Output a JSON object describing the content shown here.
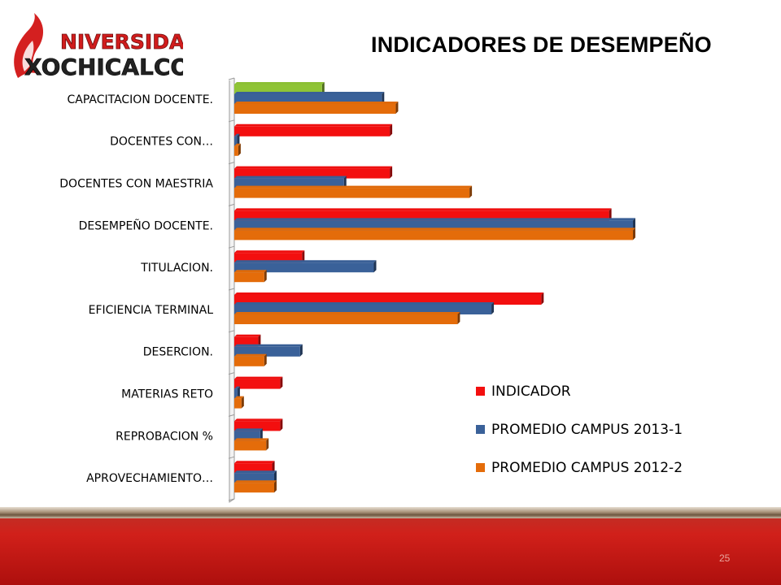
{
  "logo": {
    "line1": "NIVERSIDAD",
    "line2": "XOCHICALCO"
  },
  "title": "INDICADORES DE DESEMPEÑO",
  "page_number": "25",
  "colors": {
    "indicador": "#f30f0f",
    "campus_2013_1": "#3a6199",
    "campus_2012_2": "#e46c0a",
    "highlight": "#8fc436"
  },
  "chart_data": {
    "type": "bar",
    "orientation": "horizontal",
    "style": "3d clustered bar",
    "xlim": [
      0,
      100
    ],
    "grid": false,
    "legend_position": "bottom-right",
    "categories": [
      "CAPACITACION DOCENTE.",
      "DOCENTES CON…",
      "DOCENTES CON MAESTRIA",
      "DESEMPEÑO DOCENTE.",
      "TITULACION.",
      "EFICIENCIA TERMINAL",
      "DESERCION.",
      "MATERIAS RETO",
      "REPROBACION %",
      "APROVECHAMIENTO…"
    ],
    "series": [
      {
        "name": "INDICADOR",
        "color": "#f30f0f",
        "values": [
          22,
          39,
          39,
          94,
          17,
          77,
          6,
          11.5,
          11.5,
          9.5
        ]
      },
      {
        "name": "PROMEDIO CAMPUS 2013-1",
        "color": "#3a6199",
        "values": [
          37,
          0.7,
          27.5,
          100,
          35,
          64.5,
          16.5,
          0.8,
          6.5,
          10
        ]
      },
      {
        "name": "PROMEDIO CAMPUS 2012-2",
        "color": "#e46c0a",
        "values": [
          40.5,
          1,
          59,
          100,
          7.5,
          56,
          7.5,
          1.8,
          8,
          10
        ]
      }
    ],
    "highlighted_bar": {
      "category_index": 0,
      "series_index": 0,
      "color": "#8fc436"
    }
  }
}
